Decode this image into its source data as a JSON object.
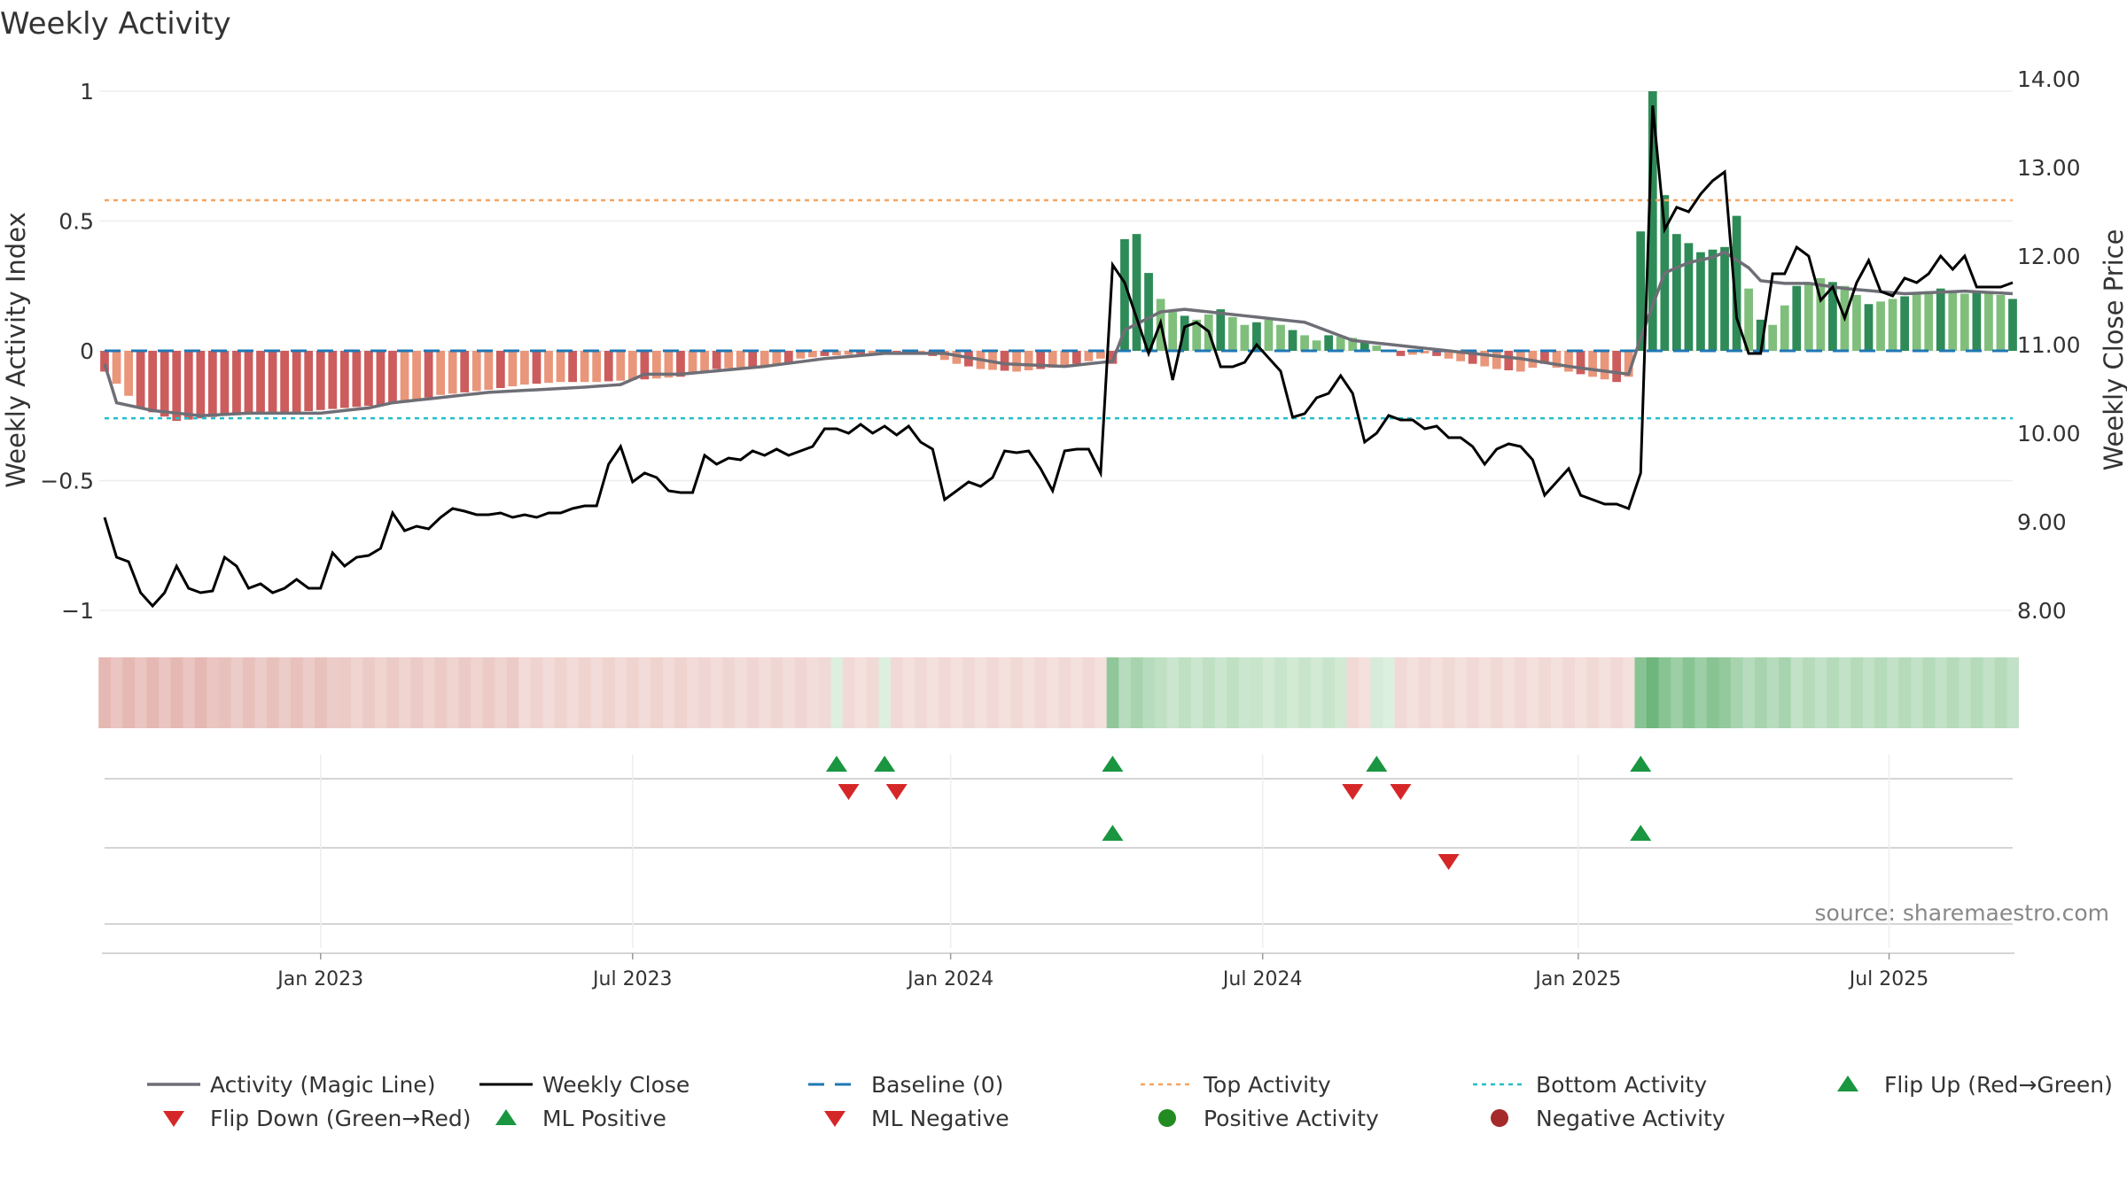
{
  "chart_data": {
    "type": "bar",
    "title": "Weekly Activity",
    "ylabel": "Weekly Activity Index",
    "y2label": "Weekly Close Price",
    "ylim": [
      -1.1,
      1.1
    ],
    "y2lim": [
      7.85,
      14.2
    ],
    "yticks": [
      {
        "v": 1,
        "label": "1"
      },
      {
        "v": 0.5,
        "label": "0.5"
      },
      {
        "v": 0,
        "label": "0"
      },
      {
        "v": -0.5,
        "label": "−0.5"
      },
      {
        "v": -1,
        "label": "−1"
      }
    ],
    "y2ticks": [
      {
        "v": 14,
        "label": "14.00"
      },
      {
        "v": 13,
        "label": "13.00"
      },
      {
        "v": 12,
        "label": "12.00"
      },
      {
        "v": 11,
        "label": "11.00"
      },
      {
        "v": 10,
        "label": "10.00"
      },
      {
        "v": 9,
        "label": "9.00"
      },
      {
        "v": 8,
        "label": "8.00"
      }
    ],
    "xticks": [
      {
        "label": "Jan 2023",
        "week": 18
      },
      {
        "label": "Jul 2023",
        "week": 44
      },
      {
        "label": "Jan 2024",
        "week": 70.5
      },
      {
        "label": "Jul 2024",
        "week": 96.5
      },
      {
        "label": "Jan 2025",
        "week": 122.8
      },
      {
        "label": "Jul 2025",
        "week": 148.7
      }
    ],
    "top_activity": 0.58,
    "bottom_activity": -0.26,
    "baseline": 0,
    "activity_knots": [
      [
        0,
        -0.08
      ],
      [
        3,
        -0.22
      ],
      [
        6,
        -0.27
      ],
      [
        10,
        -0.25
      ],
      [
        15,
        -0.24
      ],
      [
        20,
        -0.22
      ],
      [
        25,
        -0.2
      ],
      [
        28,
        -0.17
      ],
      [
        32,
        -0.15
      ],
      [
        35,
        -0.13
      ],
      [
        38,
        -0.12
      ],
      [
        41,
        -0.12
      ],
      [
        45,
        -0.11
      ],
      [
        48,
        -0.1
      ],
      [
        51,
        -0.07
      ],
      [
        54,
        -0.06
      ],
      [
        57,
        -0.05
      ],
      [
        58,
        -0.03
      ],
      [
        60,
        -0.02
      ],
      [
        62,
        -0.015
      ],
      [
        64,
        -0.01
      ],
      [
        67,
        0.0
      ],
      [
        69,
        -0.02
      ],
      [
        71,
        -0.05
      ],
      [
        73,
        -0.07
      ],
      [
        76,
        -0.08
      ],
      [
        80,
        -0.06
      ],
      [
        83,
        -0.03
      ],
      [
        84,
        -0.05
      ],
      [
        85,
        0.43
      ],
      [
        86,
        0.45
      ],
      [
        87,
        0.3
      ],
      [
        88,
        0.2
      ],
      [
        89,
        0.15
      ],
      [
        91,
        0.12
      ],
      [
        93,
        0.16
      ],
      [
        95,
        0.1
      ],
      [
        97,
        0.12
      ],
      [
        99,
        0.08
      ],
      [
        101,
        0.04
      ],
      [
        102,
        0.06
      ],
      [
        104,
        0.05
      ],
      [
        106,
        0.02
      ],
      [
        108,
        -0.02
      ],
      [
        110,
        -0.01
      ],
      [
        112,
        -0.03
      ],
      [
        114,
        -0.05
      ],
      [
        116,
        -0.07
      ],
      [
        118,
        -0.08
      ],
      [
        120,
        -0.05
      ],
      [
        122,
        -0.08
      ],
      [
        124,
        -0.1
      ],
      [
        126,
        -0.12
      ],
      [
        127,
        -0.1
      ],
      [
        128,
        0.46
      ],
      [
        129,
        1.0
      ],
      [
        130,
        0.6
      ],
      [
        131,
        0.45
      ],
      [
        133,
        0.38
      ],
      [
        135,
        0.4
      ],
      [
        136,
        0.52
      ],
      [
        137,
        0.24
      ],
      [
        138,
        0.12
      ],
      [
        139,
        0.1
      ],
      [
        141,
        0.25
      ],
      [
        143,
        0.28
      ],
      [
        145,
        0.25
      ],
      [
        147,
        0.18
      ],
      [
        149,
        0.2
      ],
      [
        151,
        0.22
      ],
      [
        153,
        0.24
      ],
      [
        155,
        0.22
      ],
      [
        157,
        0.23
      ],
      [
        159,
        0.2
      ]
    ],
    "magic_knots": [
      [
        0,
        -0.05
      ],
      [
        1,
        -0.2
      ],
      [
        4,
        -0.23
      ],
      [
        8,
        -0.25
      ],
      [
        12,
        -0.24
      ],
      [
        18,
        -0.24
      ],
      [
        22,
        -0.22
      ],
      [
        24,
        -0.2
      ],
      [
        28,
        -0.18
      ],
      [
        32,
        -0.16
      ],
      [
        40,
        -0.14
      ],
      [
        43,
        -0.13
      ],
      [
        45,
        -0.09
      ],
      [
        48,
        -0.09
      ],
      [
        55,
        -0.06
      ],
      [
        60,
        -0.03
      ],
      [
        65,
        -0.01
      ],
      [
        70,
        -0.01
      ],
      [
        75,
        -0.05
      ],
      [
        80,
        -0.06
      ],
      [
        84,
        -0.04
      ],
      [
        85,
        0.08
      ],
      [
        88,
        0.15
      ],
      [
        90,
        0.16
      ],
      [
        94,
        0.14
      ],
      [
        100,
        0.11
      ],
      [
        104,
        0.04
      ],
      [
        108,
        0.02
      ],
      [
        114,
        -0.01
      ],
      [
        118,
        -0.03
      ],
      [
        122,
        -0.06
      ],
      [
        127,
        -0.09
      ],
      [
        128,
        0.05
      ],
      [
        130,
        0.3
      ],
      [
        132,
        0.34
      ],
      [
        134,
        0.36
      ],
      [
        135,
        0.38
      ],
      [
        137,
        0.32
      ],
      [
        138,
        0.27
      ],
      [
        140,
        0.26
      ],
      [
        142,
        0.26
      ],
      [
        145,
        0.24
      ],
      [
        150,
        0.22
      ],
      [
        155,
        0.23
      ],
      [
        159,
        0.22
      ]
    ],
    "close_knots": [
      [
        0,
        9.05
      ],
      [
        1,
        8.6
      ],
      [
        2,
        8.55
      ],
      [
        3,
        8.2
      ],
      [
        4,
        8.05
      ],
      [
        5,
        8.2
      ],
      [
        6,
        8.5
      ],
      [
        7,
        8.25
      ],
      [
        8,
        8.2
      ],
      [
        9,
        8.22
      ],
      [
        10,
        8.6
      ],
      [
        11,
        8.5
      ],
      [
        12,
        8.25
      ],
      [
        13,
        8.3
      ],
      [
        14,
        8.2
      ],
      [
        15,
        8.25
      ],
      [
        16,
        8.35
      ],
      [
        17,
        8.25
      ],
      [
        18,
        8.25
      ],
      [
        19,
        8.65
      ],
      [
        20,
        8.5
      ],
      [
        21,
        8.6
      ],
      [
        22,
        8.62
      ],
      [
        23,
        8.7
      ],
      [
        24,
        9.1
      ],
      [
        25,
        8.9
      ],
      [
        26,
        8.95
      ],
      [
        27,
        8.92
      ],
      [
        28,
        9.05
      ],
      [
        29,
        9.15
      ],
      [
        30,
        9.12
      ],
      [
        31,
        9.08
      ],
      [
        32,
        9.08
      ],
      [
        33,
        9.1
      ],
      [
        34,
        9.05
      ],
      [
        35,
        9.08
      ],
      [
        36,
        9.05
      ],
      [
        37,
        9.1
      ],
      [
        38,
        9.1
      ],
      [
        39,
        9.15
      ],
      [
        40,
        9.18
      ],
      [
        41,
        9.18
      ],
      [
        42,
        9.65
      ],
      [
        43,
        9.85
      ],
      [
        44,
        9.45
      ],
      [
        45,
        9.55
      ],
      [
        46,
        9.5
      ],
      [
        47,
        9.35
      ],
      [
        48,
        9.33
      ],
      [
        49,
        9.33
      ],
      [
        50,
        9.75
      ],
      [
        51,
        9.65
      ],
      [
        52,
        9.72
      ],
      [
        53,
        9.7
      ],
      [
        54,
        9.8
      ],
      [
        55,
        9.75
      ],
      [
        56,
        9.82
      ],
      [
        57,
        9.75
      ],
      [
        58,
        9.8
      ],
      [
        59,
        9.85
      ],
      [
        60,
        10.05
      ],
      [
        61,
        10.05
      ],
      [
        62,
        10.0
      ],
      [
        63,
        10.1
      ],
      [
        64,
        10.0
      ],
      [
        65,
        10.08
      ],
      [
        66,
        9.98
      ],
      [
        67,
        10.08
      ],
      [
        68,
        9.9
      ],
      [
        69,
        9.82
      ],
      [
        70,
        9.25
      ],
      [
        71,
        9.35
      ],
      [
        72,
        9.45
      ],
      [
        73,
        9.4
      ],
      [
        74,
        9.5
      ],
      [
        75,
        9.8
      ],
      [
        76,
        9.78
      ],
      [
        77,
        9.8
      ],
      [
        78,
        9.6
      ],
      [
        79,
        9.35
      ],
      [
        80,
        9.8
      ],
      [
        81,
        9.82
      ],
      [
        82,
        9.82
      ],
      [
        83,
        9.55
      ],
      [
        84,
        11.9
      ],
      [
        85,
        11.7
      ],
      [
        86,
        11.3
      ],
      [
        87,
        10.9
      ],
      [
        88,
        11.25
      ],
      [
        89,
        10.6
      ],
      [
        90,
        11.2
      ],
      [
        91,
        11.25
      ],
      [
        92,
        11.15
      ],
      [
        93,
        10.75
      ],
      [
        94,
        10.75
      ],
      [
        95,
        10.8
      ],
      [
        96,
        11.0
      ],
      [
        97,
        10.85
      ],
      [
        98,
        10.7
      ],
      [
        99,
        10.18
      ],
      [
        100,
        10.22
      ],
      [
        101,
        10.4
      ],
      [
        102,
        10.45
      ],
      [
        103,
        10.65
      ],
      [
        104,
        10.45
      ],
      [
        105,
        9.9
      ],
      [
        106,
        10.0
      ],
      [
        107,
        10.2
      ],
      [
        108,
        10.15
      ],
      [
        109,
        10.15
      ],
      [
        110,
        10.05
      ],
      [
        111,
        10.08
      ],
      [
        112,
        9.95
      ],
      [
        113,
        9.95
      ],
      [
        114,
        9.85
      ],
      [
        115,
        9.65
      ],
      [
        116,
        9.82
      ],
      [
        117,
        9.88
      ],
      [
        118,
        9.85
      ],
      [
        119,
        9.7
      ],
      [
        120,
        9.3
      ],
      [
        121,
        9.45
      ],
      [
        122,
        9.6
      ],
      [
        123,
        9.3
      ],
      [
        124,
        9.25
      ],
      [
        125,
        9.2
      ],
      [
        126,
        9.2
      ],
      [
        127,
        9.15
      ],
      [
        128,
        9.55
      ],
      [
        129,
        13.7
      ],
      [
        130,
        12.3
      ],
      [
        131,
        12.55
      ],
      [
        132,
        12.5
      ],
      [
        133,
        12.7
      ],
      [
        134,
        12.85
      ],
      [
        135,
        12.95
      ],
      [
        136,
        11.3
      ],
      [
        137,
        10.9
      ],
      [
        138,
        10.9
      ],
      [
        139,
        11.8
      ],
      [
        140,
        11.8
      ],
      [
        141,
        12.1
      ],
      [
        142,
        12.0
      ],
      [
        143,
        11.5
      ],
      [
        144,
        11.65
      ],
      [
        145,
        11.3
      ],
      [
        146,
        11.7
      ],
      [
        147,
        11.95
      ],
      [
        148,
        11.6
      ],
      [
        149,
        11.55
      ],
      [
        150,
        11.75
      ],
      [
        151,
        11.7
      ],
      [
        152,
        11.8
      ],
      [
        153,
        12.0
      ],
      [
        154,
        11.85
      ],
      [
        155,
        12.0
      ],
      [
        156,
        11.65
      ],
      [
        157,
        11.65
      ],
      [
        158,
        11.65
      ],
      [
        159,
        11.7
      ]
    ],
    "bg_strip_knots": [
      [
        0,
        "#e5b8b3"
      ],
      [
        10,
        "#e8c1bc"
      ],
      [
        20,
        "#eccbc6"
      ],
      [
        35,
        "#efd3cf"
      ],
      [
        50,
        "#f0d6d3"
      ],
      [
        60,
        "#f1d9d6"
      ],
      [
        61,
        "#d6ebd8"
      ],
      [
        62,
        "#f1d9d6"
      ],
      [
        65,
        "#d6ebd8"
      ],
      [
        66,
        "#f1d9d6"
      ],
      [
        84,
        "#8fc79a"
      ],
      [
        85,
        "#a7d4ae"
      ],
      [
        88,
        "#bfe0c3"
      ],
      [
        96,
        "#c8e5cb"
      ],
      [
        104,
        "#f1d9d6"
      ],
      [
        106,
        "#d6ebd8"
      ],
      [
        108,
        "#f1d9d6"
      ],
      [
        128,
        "#88c493"
      ],
      [
        129,
        "#4fa561"
      ],
      [
        130,
        "#88c493"
      ],
      [
        135,
        "#7cbd87"
      ],
      [
        136,
        "#a7d4ae"
      ],
      [
        141,
        "#b5dbbb"
      ],
      [
        159,
        "#b5dbbb"
      ]
    ],
    "flip_up_weeks": [
      61,
      65,
      84,
      106,
      128
    ],
    "flip_down_weeks": [
      62,
      66,
      104,
      108
    ],
    "ml_positive_weeks": [
      84,
      128
    ],
    "ml_negative_weeks": [
      112
    ],
    "n_weeks": 160,
    "legend_position": "bottom",
    "legend": [
      {
        "key": "magic",
        "label": "Activity (Magic Line)"
      },
      {
        "key": "close",
        "label": "Weekly Close"
      },
      {
        "key": "baseline",
        "label": "Baseline (0)"
      },
      {
        "key": "top",
        "label": "Top Activity"
      },
      {
        "key": "bottom",
        "label": "Bottom Activity"
      },
      {
        "key": "flipup",
        "label": "Flip Up (Red→Green)"
      },
      {
        "key": "flipdown",
        "label": "Flip Down (Green→Red)"
      },
      {
        "key": "mlpos",
        "label": "ML Positive"
      },
      {
        "key": "mlneg",
        "label": "ML Negative"
      },
      {
        "key": "posact",
        "label": "Positive Activity"
      },
      {
        "key": "negact",
        "label": "Negative Activity"
      }
    ],
    "colors": {
      "pos_dark": "#2e8b57",
      "pos_light": "#7fbf7b",
      "neg_dark": "#cd5c5c",
      "neg_light": "#e9967a",
      "magic": "#6e6e76",
      "close": "#000000",
      "baseline": "#1f77b4",
      "top": "#f4a460",
      "bottom": "#20c0c8",
      "flip_up": "#1a9641",
      "flip_down": "#d62728",
      "pos_marker": "#228b22",
      "neg_marker": "#a52a2a",
      "grid": "#eeeeee"
    },
    "source": "source: sharemaestro.com"
  }
}
